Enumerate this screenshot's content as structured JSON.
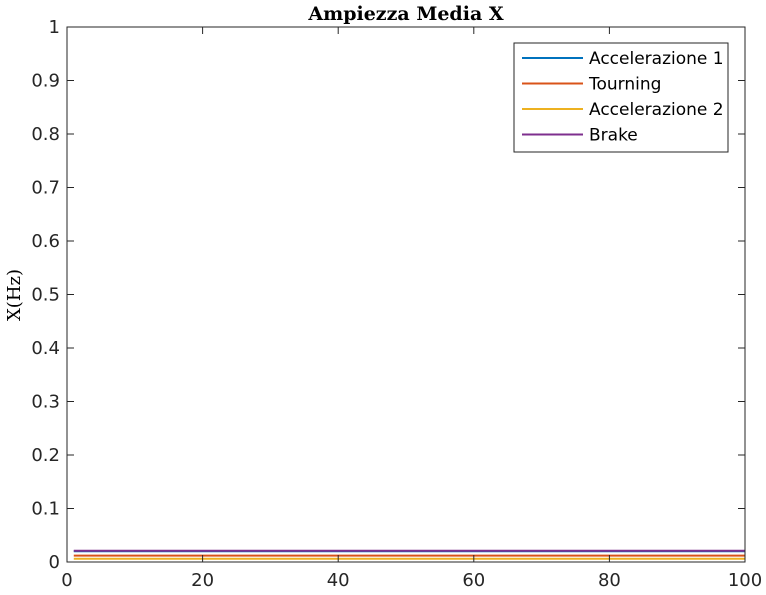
{
  "chart_data": {
    "type": "line",
    "title": "Ampiezza Media X",
    "xlabel": "",
    "ylabel": "X(Hz)",
    "xlim": [
      0,
      100
    ],
    "ylim": [
      0,
      1
    ],
    "x_ticks": [
      "0",
      "20",
      "40",
      "60",
      "80",
      "100"
    ],
    "y_ticks": [
      "0",
      "0.1",
      "0.2",
      "0.3",
      "0.4",
      "0.5",
      "0.6",
      "0.7",
      "0.8",
      "0.9",
      "1"
    ],
    "grid": false,
    "legend_position": "top-right",
    "series": [
      {
        "name": "Accelerazione 1",
        "color": "#0072BD",
        "x": [
          1,
          100
        ],
        "y": [
          0.02,
          0.02
        ]
      },
      {
        "name": "Tourning",
        "color": "#D95319",
        "x": [
          1,
          100
        ],
        "y": [
          0.012,
          0.012
        ]
      },
      {
        "name": "Accelerazione 2",
        "color": "#EDB120",
        "x": [
          1,
          100
        ],
        "y": [
          0.006,
          0.006
        ]
      },
      {
        "name": "Brake",
        "color": "#7E2F8E",
        "x": [
          1,
          100
        ],
        "y": [
          0.021,
          0.021
        ]
      }
    ]
  }
}
